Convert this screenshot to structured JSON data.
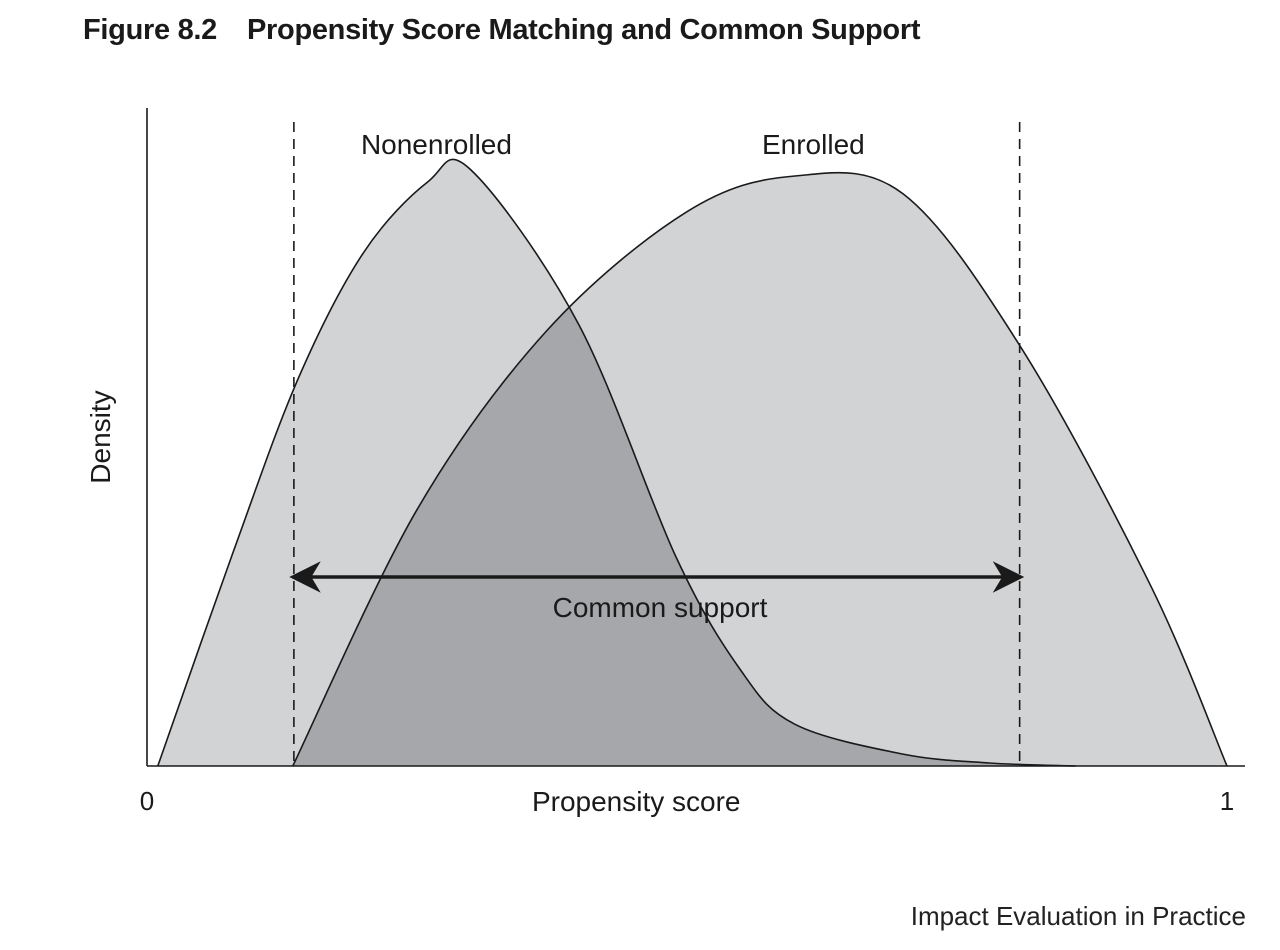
{
  "figure": {
    "number": "Figure 8.2",
    "title": "Propensity Score Matching and Common Support"
  },
  "footer": "Impact Evaluation in Practice",
  "colors": {
    "curve_fill": "#d2d3d5",
    "overlap_fill": "#a6a7aa",
    "line": "#1a1a1a"
  },
  "chart_data": {
    "type": "area",
    "xlabel": "Propensity score",
    "ylabel": "Density",
    "xlim": [
      0,
      1
    ],
    "x_ticks": [
      "0",
      "1"
    ],
    "series": [
      {
        "name": "Nonenrolled",
        "x": [
          0.01,
          0.08,
          0.14,
          0.2,
          0.26,
          0.3,
          0.4,
          0.49,
          0.55,
          0.6,
          0.7,
          0.78,
          0.86
        ],
        "y": [
          0.0,
          0.36,
          0.65,
          0.86,
          0.98,
          1.0,
          0.74,
          0.35,
          0.16,
          0.07,
          0.02,
          0.005,
          0.0
        ]
      },
      {
        "name": "Enrolled",
        "x": [
          0.135,
          0.25,
          0.37,
          0.5,
          0.6,
          0.7,
          0.81,
          0.93,
          1.0
        ],
        "y": [
          0.0,
          0.43,
          0.73,
          0.93,
          0.99,
          0.96,
          0.7,
          0.3,
          0.0
        ]
      }
    ],
    "annotations": [
      {
        "label": "Common support",
        "x_range": [
          0.136,
          0.808
        ]
      }
    ],
    "grid": false
  }
}
